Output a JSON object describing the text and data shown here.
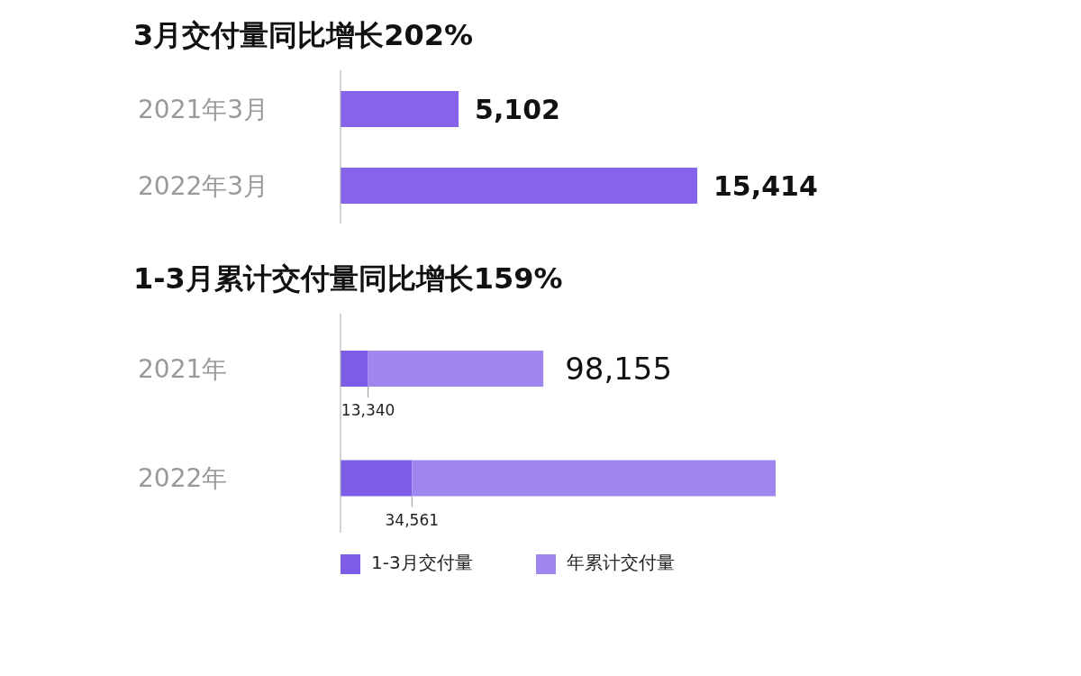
{
  "chart_data": [
    {
      "type": "bar",
      "title": "3月交付量同比增长202%",
      "orientation": "horizontal",
      "categories": [
        "2021年3月",
        "2022年3月"
      ],
      "values": [
        5102,
        15414
      ],
      "value_labels": [
        "5,102",
        "15,414"
      ],
      "color": "#8563ea"
    },
    {
      "type": "bar",
      "title": "1-3月累计交付量同比增长159%",
      "orientation": "horizontal",
      "stacked": true,
      "categories": [
        "2021年",
        "2022年"
      ],
      "series": [
        {
          "name": "1-3月交付量",
          "color": "#7d5ce6",
          "values": [
            13340,
            34561
          ],
          "value_labels": [
            "13,340",
            "34,561"
          ]
        },
        {
          "name": "年累计交付量",
          "color": "#9f85ee",
          "values": [
            84815,
            176000
          ]
        }
      ],
      "totals": [
        "98,155",
        null
      ],
      "legend": "bottom"
    }
  ]
}
